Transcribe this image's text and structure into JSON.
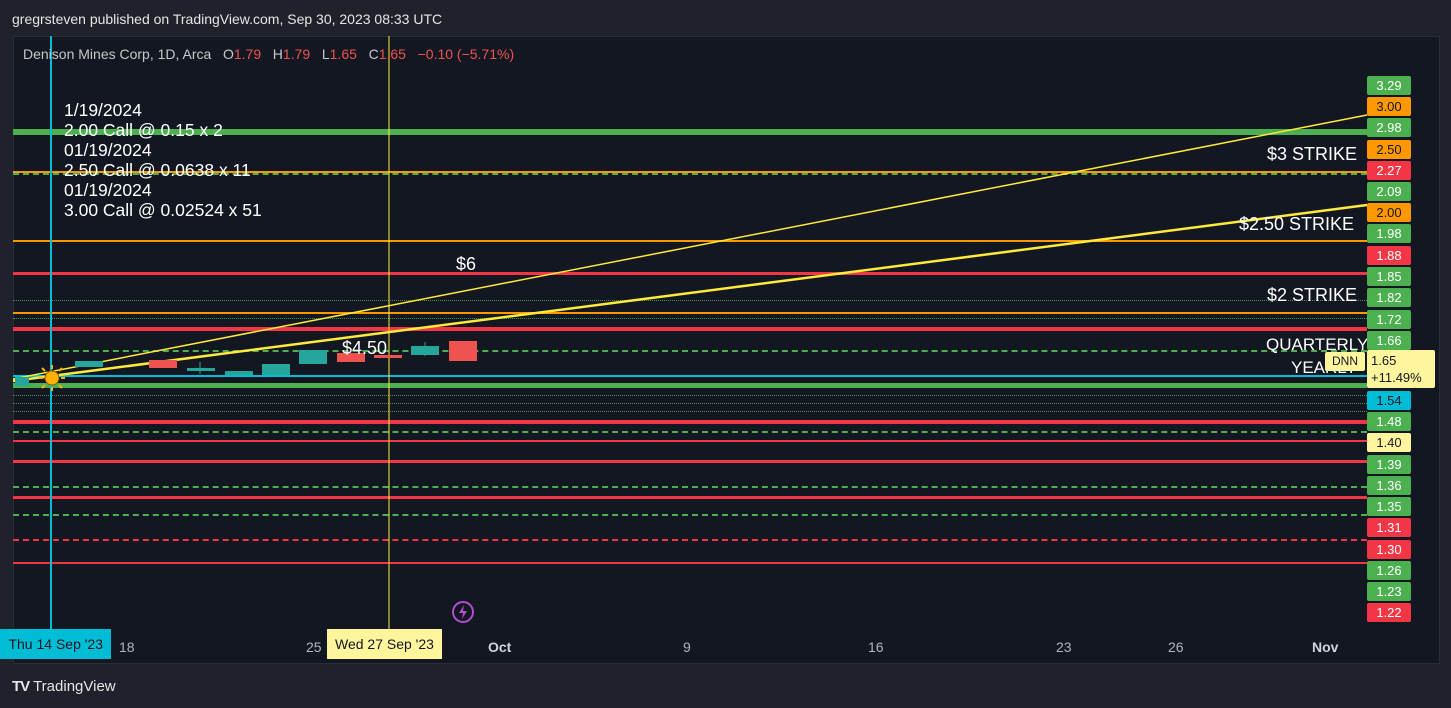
{
  "header": {
    "publish_line": "gregrsteven published on TradingView.com, Sep 30, 2023 08:33 UTC"
  },
  "legend": {
    "symbol": "Denison Mines Corp, 1D, Arca",
    "open_label": "O",
    "open": "1.79",
    "high_label": "H",
    "high": "1.79",
    "low_label": "L",
    "low": "1.65",
    "close_label": "C",
    "close": "1.65",
    "change": "−0.10 (−5.71%)"
  },
  "notes": [
    "1/19/2024",
    "2.00 Call @ 0.15 x 2",
    "01/19/2024",
    "2.50 Call @ 0.0638 x 11",
    "01/19/2024",
    "3.00 Call @ 0.02524 x 51"
  ],
  "chart_labels": {
    "strike3": "$3 STRIKE",
    "strike250": "$2.50 STRIKE",
    "strike2": "$2 STRIKE",
    "quarterly": "QUARTERLY",
    "yearly": "YEARLY",
    "six": "$6",
    "four50": "$4.50"
  },
  "price_badges": [
    {
      "text": "3.29",
      "color": "#4caf50"
    },
    {
      "text": "3.00",
      "color": "#ff9800"
    },
    {
      "text": "2.98",
      "color": "#4caf50"
    },
    {
      "text": "2.50",
      "color": "#ff9800"
    },
    {
      "text": "2.27",
      "color": "#f23645"
    },
    {
      "text": "2.09",
      "color": "#4caf50"
    },
    {
      "text": "2.00",
      "color": "#ff9800"
    },
    {
      "text": "1.98",
      "color": "#4caf50"
    },
    {
      "text": "1.88",
      "color": "#f23645"
    },
    {
      "text": "1.85",
      "color": "#4caf50"
    },
    {
      "text": "1.82",
      "color": "#4caf50"
    },
    {
      "text": "1.72",
      "color": "#4caf50"
    },
    {
      "text": "1.66",
      "color": "#4caf50"
    },
    {
      "text": "1.54",
      "color": "#00bcd4"
    },
    {
      "text": "1.48",
      "color": "#4caf50"
    },
    {
      "text": "1.40",
      "color": "#fff59d"
    },
    {
      "text": "1.39",
      "color": "#4caf50"
    },
    {
      "text": "1.36",
      "color": "#4caf50"
    },
    {
      "text": "1.35",
      "color": "#4caf50"
    },
    {
      "text": "1.31",
      "color": "#f23645"
    },
    {
      "text": "1.30",
      "color": "#f23645"
    },
    {
      "text": "1.26",
      "color": "#4caf50"
    },
    {
      "text": "1.23",
      "color": "#4caf50"
    },
    {
      "text": "1.22",
      "color": "#f23645"
    }
  ],
  "ticker_badge": "DNN",
  "last_price": "1.65",
  "last_change": "+11.49%",
  "time_axis": {
    "highlight_left": "Thu 14 Sep '23",
    "highlight_right": "Wed 27 Sep '23",
    "ticks": [
      "18",
      "25",
      "Oct",
      "9",
      "16",
      "23",
      "26",
      "Nov"
    ]
  },
  "footer": {
    "brand": "TradingView"
  }
}
